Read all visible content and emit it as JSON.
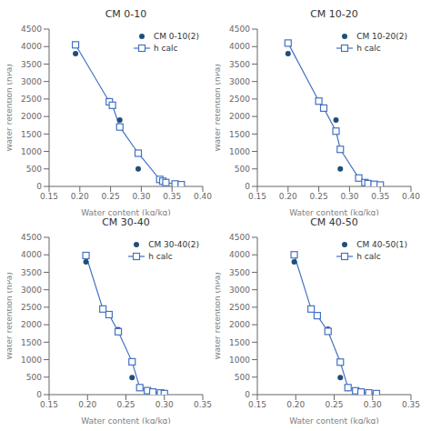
{
  "chart_data": [
    {
      "type": "line",
      "title": "CM 0-10",
      "x_label": "Water content (kg/kg)",
      "y_label": "Water retention (hPa)",
      "x": [
        0.193,
        0.248,
        0.253,
        0.265,
        0.295,
        0.33,
        0.335,
        0.34,
        0.355,
        0.365
      ],
      "series": [
        {
          "name": "CM 0-10(2)",
          "type": "scatter",
          "marker": "circle",
          "color": "#1F4E79",
          "values": [
            3800,
            2450,
            2340,
            1900,
            500,
            175,
            130,
            100,
            75,
            55
          ]
        },
        {
          "name": "h calc",
          "type": "line",
          "marker": "square",
          "color": "#4472C4",
          "values": [
            4050,
            2420,
            2320,
            1700,
            950,
            200,
            150,
            110,
            70,
            50
          ]
        }
      ],
      "xlim": [
        0.15,
        0.4
      ],
      "xticks": [
        0.15,
        {
          "value": 0.2,
          "label": "0.20"
        },
        0.25,
        {
          "value": 0.3,
          "label": "0.30"
        },
        0.35,
        {
          "value": 0.4,
          "label": "0.40"
        }
      ],
      "ylim": [
        0,
        4500
      ],
      "yticks": [
        0,
        500,
        1000,
        1500,
        2000,
        2500,
        3000,
        3500,
        4000,
        4500
      ],
      "legend": "upper right",
      "grid": false
    },
    {
      "type": "line",
      "title": "CM 10-20",
      "x_label": "Water content (kg/kg)",
      "y_label": "Water retention (hPa)",
      "x": [
        0.2,
        0.25,
        0.258,
        0.278,
        0.285,
        0.315,
        0.325,
        0.33,
        0.34,
        0.35
      ],
      "series": [
        {
          "name": "CM 10-20(2)",
          "type": "scatter",
          "marker": "circle",
          "color": "#1F4E79",
          "values": [
            3800,
            2450,
            2260,
            1900,
            500,
            230,
            130,
            100,
            80,
            55
          ]
        },
        {
          "name": "h calc",
          "type": "line",
          "marker": "square",
          "color": "#4472C4",
          "values": [
            4100,
            2440,
            2240,
            1580,
            1060,
            240,
            110,
            80,
            60,
            40
          ]
        }
      ],
      "xlim": [
        0.15,
        0.4
      ],
      "xticks": [
        0.15,
        {
          "value": 0.2,
          "label": "0.20"
        },
        0.25,
        {
          "value": 0.3,
          "label": "0.30"
        },
        0.35,
        {
          "value": 0.4,
          "label": "0.40"
        }
      ],
      "ylim": [
        0,
        4500
      ],
      "yticks": [
        0,
        500,
        1000,
        1500,
        2000,
        2500,
        3000,
        3500,
        4000,
        4500
      ],
      "legend": "upper right",
      "grid": false
    },
    {
      "type": "line",
      "title": "CM 30-40",
      "x_label": "Water content (kg/kg)",
      "y_label": "Water retention (hPa)",
      "x": [
        0.198,
        0.22,
        0.228,
        0.24,
        0.258,
        0.268,
        0.278,
        0.285,
        0.295,
        0.3
      ],
      "series": [
        {
          "name": "CM 30-40(2)",
          "type": "scatter",
          "marker": "circle",
          "color": "#1F4E79",
          "values": [
            3800,
            2470,
            2310,
            1860,
            490,
            180,
            125,
            85,
            65,
            45
          ]
        },
        {
          "name": "h calc",
          "type": "line",
          "marker": "square",
          "color": "#4472C4",
          "values": [
            3980,
            2450,
            2290,
            1800,
            940,
            200,
            115,
            75,
            50,
            30
          ]
        }
      ],
      "xlim": [
        0.15,
        0.35
      ],
      "xticks": [
        0.15,
        {
          "value": 0.2,
          "label": "0.20"
        },
        0.25,
        {
          "value": 0.3,
          "label": "0.30"
        },
        0.35
      ],
      "ylim": [
        0,
        4500
      ],
      "yticks": [
        0,
        500,
        1000,
        1500,
        2000,
        2500,
        3000,
        3500,
        4000,
        4500
      ],
      "legend": "upper right",
      "grid": false
    },
    {
      "type": "line",
      "title": "CM 40-50",
      "x_label": "Water content (kg/kg)",
      "y_label": "Water retention (hPa)",
      "x": [
        0.198,
        0.22,
        0.228,
        0.242,
        0.258,
        0.268,
        0.278,
        0.285,
        0.295,
        0.305
      ],
      "series": [
        {
          "name": "CM 40-50(1)",
          "type": "scatter",
          "marker": "circle",
          "color": "#1F4E79",
          "values": [
            3800,
            2460,
            2280,
            1870,
            490,
            175,
            120,
            85,
            60,
            40
          ]
        },
        {
          "name": "h calc",
          "type": "line",
          "marker": "square",
          "color": "#4472C4",
          "values": [
            4000,
            2450,
            2260,
            1810,
            930,
            200,
            110,
            75,
            50,
            30
          ]
        }
      ],
      "xlim": [
        0.15,
        0.35
      ],
      "xticks": [
        0.15,
        {
          "value": 0.2,
          "label": "0.20"
        },
        0.25,
        {
          "value": 0.3,
          "label": "0.30"
        },
        0.35
      ],
      "ylim": [
        0,
        4500
      ],
      "yticks": [
        0,
        500,
        1000,
        1500,
        2000,
        2500,
        3000,
        3500,
        4000,
        4500
      ],
      "legend": "upper right",
      "grid": false
    }
  ]
}
